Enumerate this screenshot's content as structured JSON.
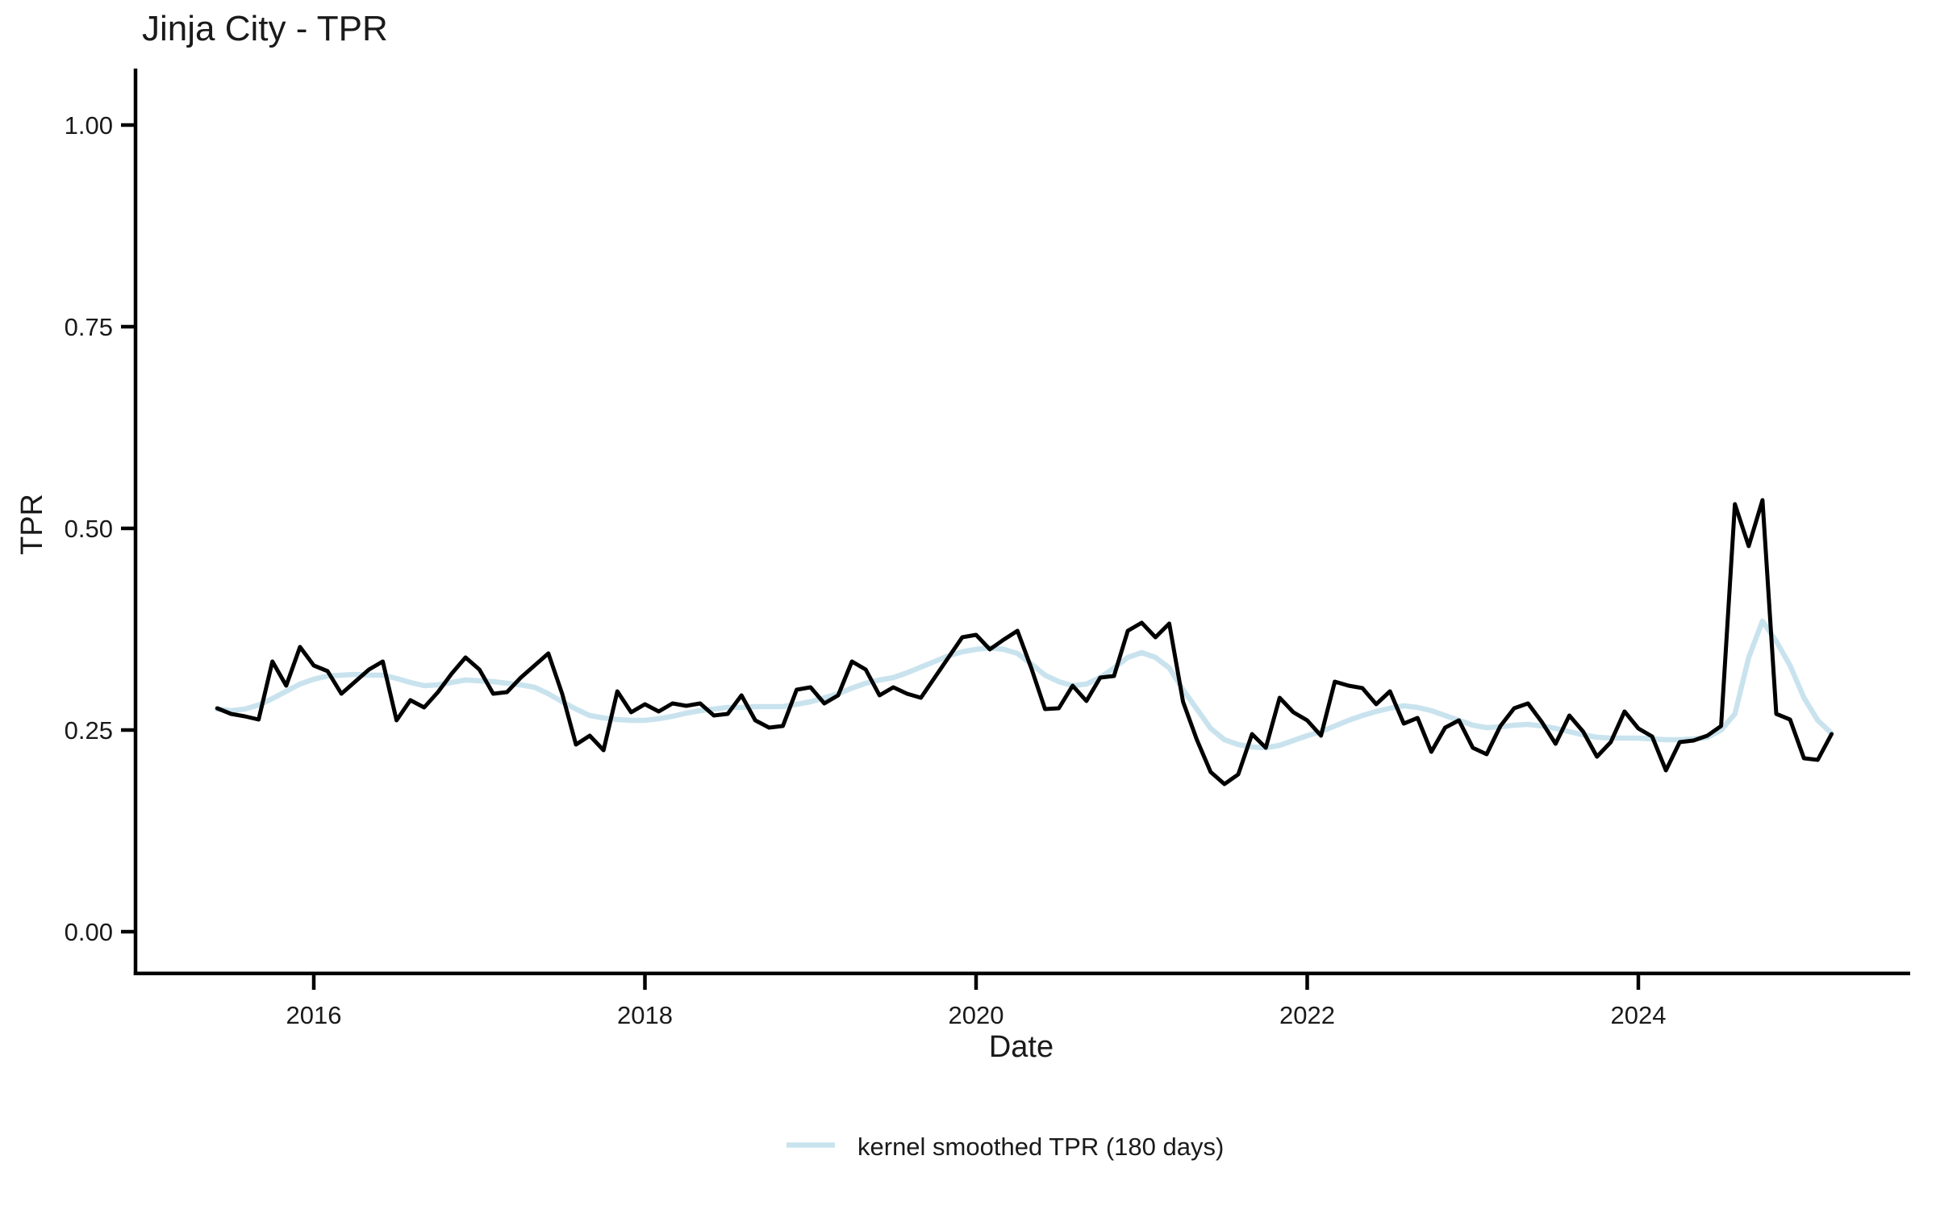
{
  "chart": {
    "title": "Jinja City - TPR",
    "xlabel": "Date",
    "ylabel": "TPR"
  },
  "legend": {
    "label": "kernel smoothed TPR (180 days)",
    "swatch_color": "#c9e3ee",
    "position": "bottom-center"
  },
  "colors": {
    "tpr_line": "#000000",
    "smoothed_line": "#c9e3ee",
    "axis": "#000000",
    "background": "#ffffff"
  },
  "chart_data": {
    "type": "line",
    "title": "Jinja City - TPR",
    "xlabel": "Date",
    "ylabel": "TPR",
    "grid": false,
    "legend_position": "bottom",
    "xlim_years": [
      2014.92,
      2025.62
    ],
    "ylim": [
      0,
      1.05
    ],
    "x_ticks": [
      2016,
      2018,
      2020,
      2022,
      2024
    ],
    "x_tick_labels": [
      "2016",
      "2018",
      "2020",
      "2022",
      "2024"
    ],
    "y_ticks": [
      0.0,
      0.25,
      0.5,
      0.75,
      1.0
    ],
    "y_tick_labels": [
      "0.00",
      "0.25",
      "0.50",
      "0.75",
      "1.00"
    ],
    "x": [
      "2015-06",
      "2015-07",
      "2015-08",
      "2015-09",
      "2015-10",
      "2015-11",
      "2015-12",
      "2016-01",
      "2016-02",
      "2016-03",
      "2016-04",
      "2016-05",
      "2016-06",
      "2016-07",
      "2016-08",
      "2016-09",
      "2016-10",
      "2016-11",
      "2016-12",
      "2017-01",
      "2017-02",
      "2017-03",
      "2017-04",
      "2017-05",
      "2017-06",
      "2017-07",
      "2017-08",
      "2017-09",
      "2017-10",
      "2017-11",
      "2017-12",
      "2018-01",
      "2018-02",
      "2018-03",
      "2018-04",
      "2018-05",
      "2018-06",
      "2018-07",
      "2018-08",
      "2018-09",
      "2018-10",
      "2018-11",
      "2018-12",
      "2019-01",
      "2019-02",
      "2019-03",
      "2019-04",
      "2019-05",
      "2019-06",
      "2019-07",
      "2019-08",
      "2019-09",
      "2019-10",
      "2019-11",
      "2019-12",
      "2020-01",
      "2020-02",
      "2020-03",
      "2020-04",
      "2020-05",
      "2020-06",
      "2020-07",
      "2020-08",
      "2020-09",
      "2020-10",
      "2020-11",
      "2020-12",
      "2021-01",
      "2021-02",
      "2021-03",
      "2021-04",
      "2021-05",
      "2021-06",
      "2021-07",
      "2021-08",
      "2021-09",
      "2021-10",
      "2021-11",
      "2021-12",
      "2022-01",
      "2022-02",
      "2022-03",
      "2022-04",
      "2022-05",
      "2022-06",
      "2022-07",
      "2022-08",
      "2022-09",
      "2022-10",
      "2022-11",
      "2022-12",
      "2023-01",
      "2023-02",
      "2023-03",
      "2023-04",
      "2023-05",
      "2023-06",
      "2023-07",
      "2023-08",
      "2023-09",
      "2023-10",
      "2023-11",
      "2023-12",
      "2024-01",
      "2024-02",
      "2024-03",
      "2024-04",
      "2024-05",
      "2024-06",
      "2024-07",
      "2024-08",
      "2024-09",
      "2024-10",
      "2024-11",
      "2024-12",
      "2025-01",
      "2025-02",
      "2025-03"
    ],
    "series": [
      {
        "name": "TPR",
        "color": "#000000",
        "stroke_width": 5,
        "values": [
          0.277,
          0.27,
          0.267,
          0.263,
          0.335,
          0.305,
          0.353,
          0.33,
          0.323,
          0.295,
          0.31,
          0.325,
          0.335,
          0.262,
          0.287,
          0.278,
          0.297,
          0.32,
          0.34,
          0.325,
          0.295,
          0.297,
          0.315,
          0.33,
          0.345,
          0.295,
          0.232,
          0.243,
          0.225,
          0.298,
          0.272,
          0.282,
          0.273,
          0.283,
          0.28,
          0.283,
          0.268,
          0.27,
          0.293,
          0.262,
          0.253,
          0.255,
          0.3,
          0.303,
          0.283,
          0.293,
          0.335,
          0.325,
          0.293,
          0.303,
          0.295,
          0.29,
          0.315,
          0.34,
          0.365,
          0.368,
          0.35,
          0.362,
          0.373,
          0.327,
          0.276,
          0.277,
          0.305,
          0.286,
          0.315,
          0.317,
          0.373,
          0.383,
          0.365,
          0.382,
          0.285,
          0.238,
          0.198,
          0.183,
          0.195,
          0.245,
          0.228,
          0.29,
          0.272,
          0.262,
          0.243,
          0.31,
          0.305,
          0.302,
          0.282,
          0.298,
          0.258,
          0.265,
          0.223,
          0.253,
          0.262,
          0.228,
          0.22,
          0.255,
          0.277,
          0.283,
          0.26,
          0.233,
          0.268,
          0.248,
          0.217,
          0.235,
          0.273,
          0.252,
          0.242,
          0.2,
          0.235,
          0.237,
          0.243,
          0.255,
          0.53,
          0.478,
          0.535,
          0.27,
          0.263,
          0.215,
          0.213,
          0.245
        ]
      },
      {
        "name": "kernel smoothed TPR (180 days)",
        "color": "#c9e3ee",
        "stroke_width": 6.5,
        "values": [
          0.276,
          0.274,
          0.276,
          0.281,
          0.289,
          0.298,
          0.307,
          0.313,
          0.317,
          0.318,
          0.319,
          0.318,
          0.318,
          0.314,
          0.309,
          0.305,
          0.306,
          0.309,
          0.312,
          0.311,
          0.31,
          0.308,
          0.306,
          0.303,
          0.295,
          0.285,
          0.276,
          0.268,
          0.265,
          0.263,
          0.262,
          0.262,
          0.264,
          0.267,
          0.271,
          0.274,
          0.276,
          0.278,
          0.278,
          0.279,
          0.279,
          0.279,
          0.282,
          0.285,
          0.29,
          0.295,
          0.302,
          0.308,
          0.312,
          0.315,
          0.321,
          0.328,
          0.335,
          0.342,
          0.347,
          0.35,
          0.352,
          0.35,
          0.345,
          0.332,
          0.318,
          0.31,
          0.305,
          0.307,
          0.315,
          0.327,
          0.34,
          0.346,
          0.34,
          0.327,
          0.3,
          0.276,
          0.252,
          0.238,
          0.232,
          0.229,
          0.228,
          0.231,
          0.237,
          0.243,
          0.248,
          0.255,
          0.262,
          0.268,
          0.273,
          0.277,
          0.28,
          0.278,
          0.274,
          0.268,
          0.262,
          0.256,
          0.253,
          0.254,
          0.256,
          0.257,
          0.255,
          0.252,
          0.248,
          0.244,
          0.241,
          0.24,
          0.24,
          0.24,
          0.239,
          0.238,
          0.238,
          0.239,
          0.241,
          0.25,
          0.27,
          0.34,
          0.385,
          0.36,
          0.33,
          0.29,
          0.262,
          0.246
        ]
      }
    ]
  }
}
